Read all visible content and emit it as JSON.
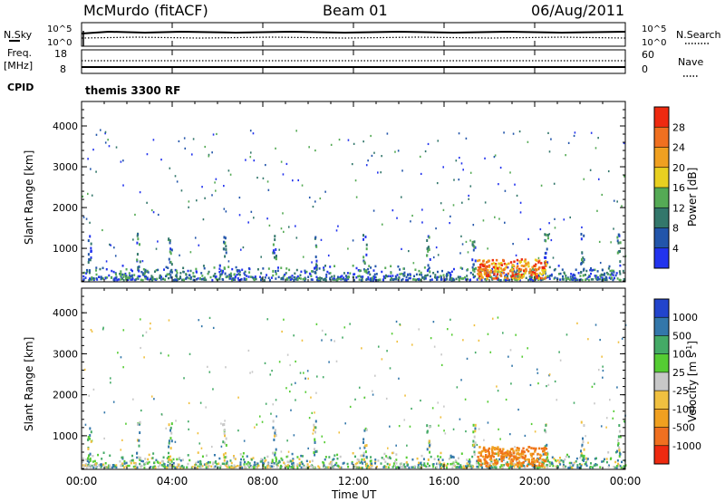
{
  "header": {
    "station": "McMurdo (fitACF)",
    "beam": "Beam 01",
    "date": "06/Aug/2011"
  },
  "top_panel": {
    "left_label": "N.Sky",
    "right_label": "N.Search",
    "left_ticks": [
      "10^5",
      "10^0"
    ],
    "right_ticks": [
      "10^5",
      "10^0"
    ]
  },
  "freq_panel": {
    "left_label": "Freq.",
    "left_unit": "[MHz]",
    "right_label": "Nave",
    "cpid_label": "CPID",
    "cpid_value": "themis 3300 RF",
    "left_ticks": [
      "18",
      "8"
    ],
    "right_ticks": [
      "60",
      "0"
    ]
  },
  "chart_data": [
    {
      "type": "heatmap",
      "name": "Power",
      "ylabel": "Slant Range [km]",
      "xlabel": "Time UT",
      "x_ticks": [
        "00:00",
        "04:00",
        "08:00",
        "12:00",
        "16:00",
        "20:00",
        "00:00"
      ],
      "y_ticks": [
        "1000",
        "2000",
        "3000",
        "4000"
      ],
      "ylim": [
        180,
        4600
      ],
      "colorbar": {
        "label": "Power [dB]",
        "ticks": [
          "4",
          "8",
          "12",
          "16",
          "20",
          "24",
          "28"
        ],
        "colors": [
          "#2233ee",
          "#2255aa",
          "#33776b",
          "#55aa55",
          "#e8d020",
          "#f0a020",
          "#f07020",
          "#ee2a10"
        ]
      }
    },
    {
      "type": "heatmap",
      "name": "Velocity",
      "ylabel": "Slant Range [km]",
      "xlabel": "Time UT",
      "x_ticks": [
        "00:00",
        "04:00",
        "08:00",
        "12:00",
        "16:00",
        "20:00",
        "00:00"
      ],
      "y_ticks": [
        "1000",
        "2000",
        "3000",
        "4000"
      ],
      "ylim": [
        180,
        4600
      ],
      "colorbar": {
        "label": "Velocity [m s^-1]",
        "ticks": [
          "1000",
          "500",
          "100",
          "25",
          "-25",
          "-100",
          "-500",
          "-1000"
        ],
        "colors": [
          "#2244cc",
          "#3377aa",
          "#44aa66",
          "#55cc33",
          "#c8c8c8",
          "#f0c040",
          "#f0a020",
          "#f07020",
          "#ee2a10"
        ]
      }
    }
  ],
  "xaxis_title": "Time UT"
}
